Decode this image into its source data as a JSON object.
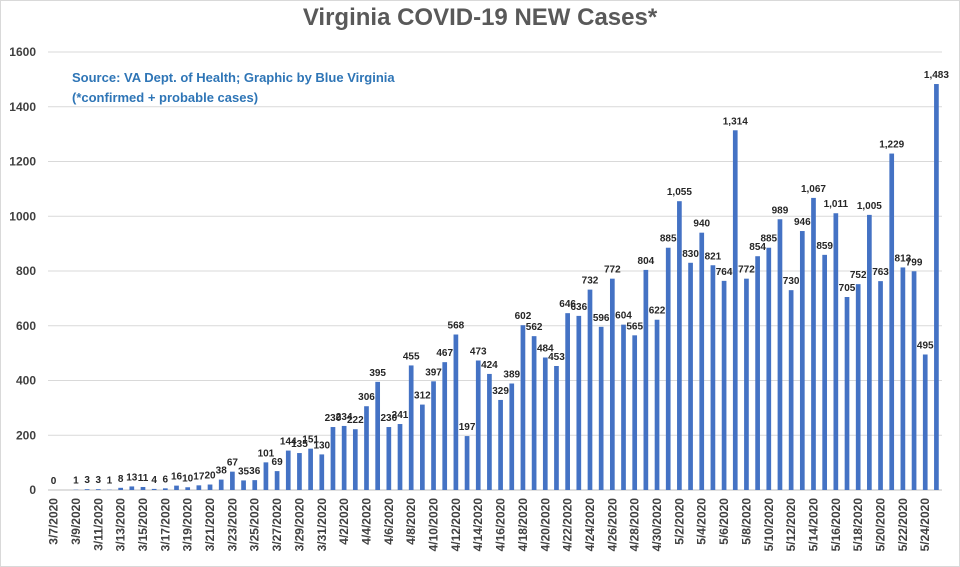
{
  "chart_data": {
    "type": "bar",
    "title": "Virginia COVID-19 NEW Cases*",
    "annotations": [
      "Source: VA Dept. of Health; Graphic by Blue Virginia",
      "(*confirmed + probable cases)"
    ],
    "xlabel": "",
    "ylabel": "",
    "ylim": [
      0,
      1600
    ],
    "y_ticks": [
      0,
      200,
      400,
      600,
      800,
      1000,
      1200,
      1400,
      1600
    ],
    "grid": "horizontal",
    "bar_color": "#4472c4",
    "categories": [
      "3/7/2020",
      "3/8/2020",
      "3/9/2020",
      "3/10/2020",
      "3/11/2020",
      "3/12/2020",
      "3/13/2020",
      "3/14/2020",
      "3/15/2020",
      "3/16/2020",
      "3/17/2020",
      "3/18/2020",
      "3/19/2020",
      "3/20/2020",
      "3/21/2020",
      "3/22/2020",
      "3/23/2020",
      "3/24/2020",
      "3/25/2020",
      "3/26/2020",
      "3/27/2020",
      "3/28/2020",
      "3/29/2020",
      "3/30/2020",
      "3/31/2020",
      "4/1/2020",
      "4/2/2020",
      "4/3/2020",
      "4/4/2020",
      "4/5/2020",
      "4/6/2020",
      "4/7/2020",
      "4/8/2020",
      "4/9/2020",
      "4/10/2020",
      "4/11/2020",
      "4/12/2020",
      "4/13/2020",
      "4/14/2020",
      "4/15/2020",
      "4/16/2020",
      "4/17/2020",
      "4/18/2020",
      "4/19/2020",
      "4/20/2020",
      "4/21/2020",
      "4/22/2020",
      "4/23/2020",
      "4/24/2020",
      "4/25/2020",
      "4/26/2020",
      "4/27/2020",
      "4/28/2020",
      "4/29/2020",
      "4/30/2020",
      "5/1/2020",
      "5/2/2020",
      "5/3/2020",
      "5/4/2020",
      "5/5/2020",
      "5/6/2020",
      "5/7/2020",
      "5/8/2020",
      "5/9/2020",
      "5/10/2020",
      "5/11/2020",
      "5/12/2020",
      "5/13/2020",
      "5/14/2020",
      "5/15/2020",
      "5/16/2020",
      "5/17/2020",
      "5/18/2020",
      "5/19/2020",
      "5/20/2020",
      "5/21/2020",
      "5/22/2020",
      "5/23/2020",
      "5/24/2020",
      "5/25/2020"
    ],
    "x_tick_labels": [
      "3/7/2020",
      "3/9/2020",
      "3/11/2020",
      "3/13/2020",
      "3/15/2020",
      "3/17/2020",
      "3/19/2020",
      "3/21/2020",
      "3/23/2020",
      "3/25/2020",
      "3/27/2020",
      "3/29/2020",
      "3/31/2020",
      "4/2/2020",
      "4/4/2020",
      "4/6/2020",
      "4/8/2020",
      "4/10/2020",
      "4/12/2020",
      "4/14/2020",
      "4/16/2020",
      "4/18/2020",
      "4/20/2020",
      "4/22/2020",
      "4/24/2020",
      "4/26/2020",
      "4/28/2020",
      "4/30/2020",
      "5/2/2020",
      "5/4/2020",
      "5/6/2020",
      "5/8/2020",
      "5/10/2020",
      "5/12/2020",
      "5/14/2020",
      "5/16/2020",
      "5/18/2020",
      "5/20/2020",
      "5/22/2020",
      "5/24/2020"
    ],
    "values": [
      0,
      null,
      1,
      3,
      3,
      1,
      8,
      13,
      11,
      4,
      6,
      16,
      10,
      17,
      20,
      38,
      67,
      35,
      36,
      101,
      69,
      144,
      135,
      151,
      130,
      230,
      234,
      222,
      306,
      395,
      230,
      241,
      455,
      312,
      397,
      467,
      568,
      197,
      473,
      424,
      329,
      389,
      602,
      562,
      484,
      453,
      646,
      636,
      732,
      596,
      772,
      604,
      565,
      804,
      622,
      885,
      1055,
      830,
      940,
      821,
      764,
      1314,
      772,
      854,
      885,
      989,
      730,
      946,
      1067,
      859,
      1011,
      705,
      752,
      1005,
      763,
      1229,
      813,
      799,
      495,
      1483
    ],
    "value_labels": [
      "0",
      "",
      "1",
      "3",
      "3",
      "1",
      "8",
      "13",
      "11",
      "4",
      "6",
      "16",
      "10",
      "17",
      "20",
      "38",
      "67",
      "35",
      "36",
      "101",
      "69",
      "144",
      "135",
      "151",
      "130",
      "230",
      "234",
      "222",
      "306",
      "395",
      "230",
      "241",
      "455",
      "312",
      "397",
      "467",
      "568",
      "197",
      "473",
      "424",
      "329",
      "389",
      "602",
      "562",
      "484",
      "453",
      "646",
      "636",
      "732",
      "596",
      "772",
      "604",
      "565",
      "804",
      "622",
      "885",
      "1,055",
      "830",
      "940",
      "821",
      "764",
      "1,314",
      "772",
      "854",
      "885",
      "989",
      "730",
      "946",
      "1,067",
      "859",
      "1,011",
      "705",
      "752",
      "1,005",
      "763",
      "1,229",
      "813",
      "799",
      "495",
      "1,483"
    ]
  }
}
